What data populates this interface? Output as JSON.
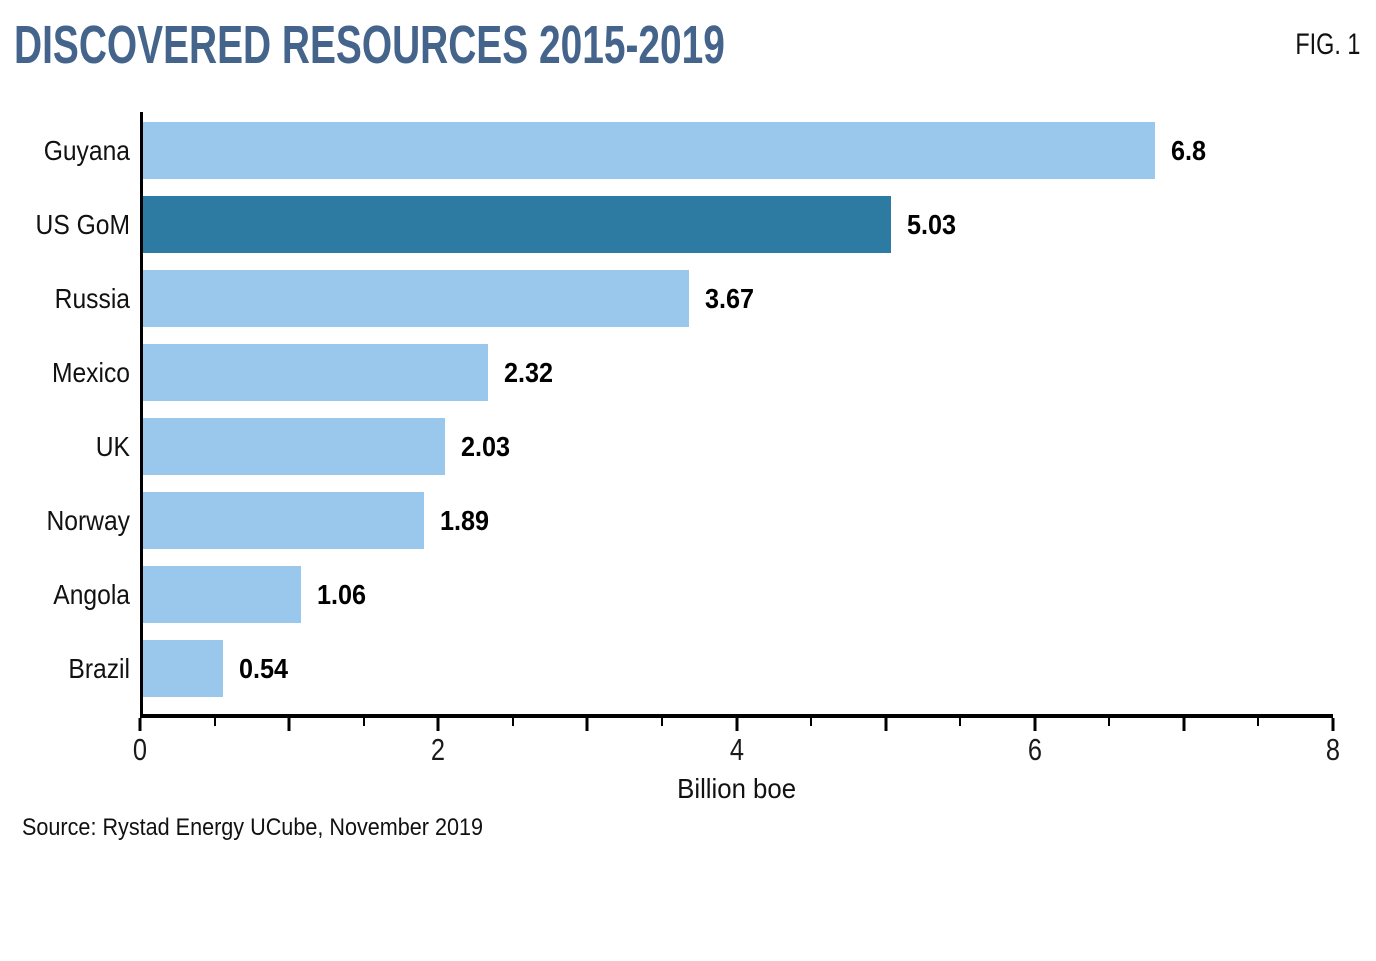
{
  "header": {
    "title": "DISCOVERED RESOURCES 2015-2019",
    "figure_label": "FIG. 1"
  },
  "chart_data": {
    "type": "bar",
    "orientation": "horizontal",
    "title": "DISCOVERED RESOURCES 2015-2019",
    "categories": [
      "Guyana",
      "US GoM",
      "Russia",
      "Mexico",
      "UK",
      "Norway",
      "Angola",
      "Brazil"
    ],
    "values": [
      6.8,
      5.03,
      3.67,
      2.32,
      2.03,
      1.89,
      1.06,
      0.54
    ],
    "value_labels": [
      "6.8",
      "5.03",
      "3.67",
      "2.32",
      "2.03",
      "1.89",
      "1.06",
      "0.54"
    ],
    "highlighted_category": "US GoM",
    "xlabel": "Billion boe",
    "ylabel": "",
    "xlim": [
      0,
      8
    ],
    "x_major_tick_labels": [
      0,
      2,
      4,
      6,
      8
    ],
    "x_minor_tick_step": 0.5,
    "grid": false,
    "legend": false,
    "colors": {
      "bar": "#9ac7ec",
      "highlight_bar": "#2d7ba3",
      "title": "#44648c",
      "axis": "#000000"
    }
  },
  "footer": {
    "source": "Source: Rystad Energy UCube, November 2019"
  }
}
